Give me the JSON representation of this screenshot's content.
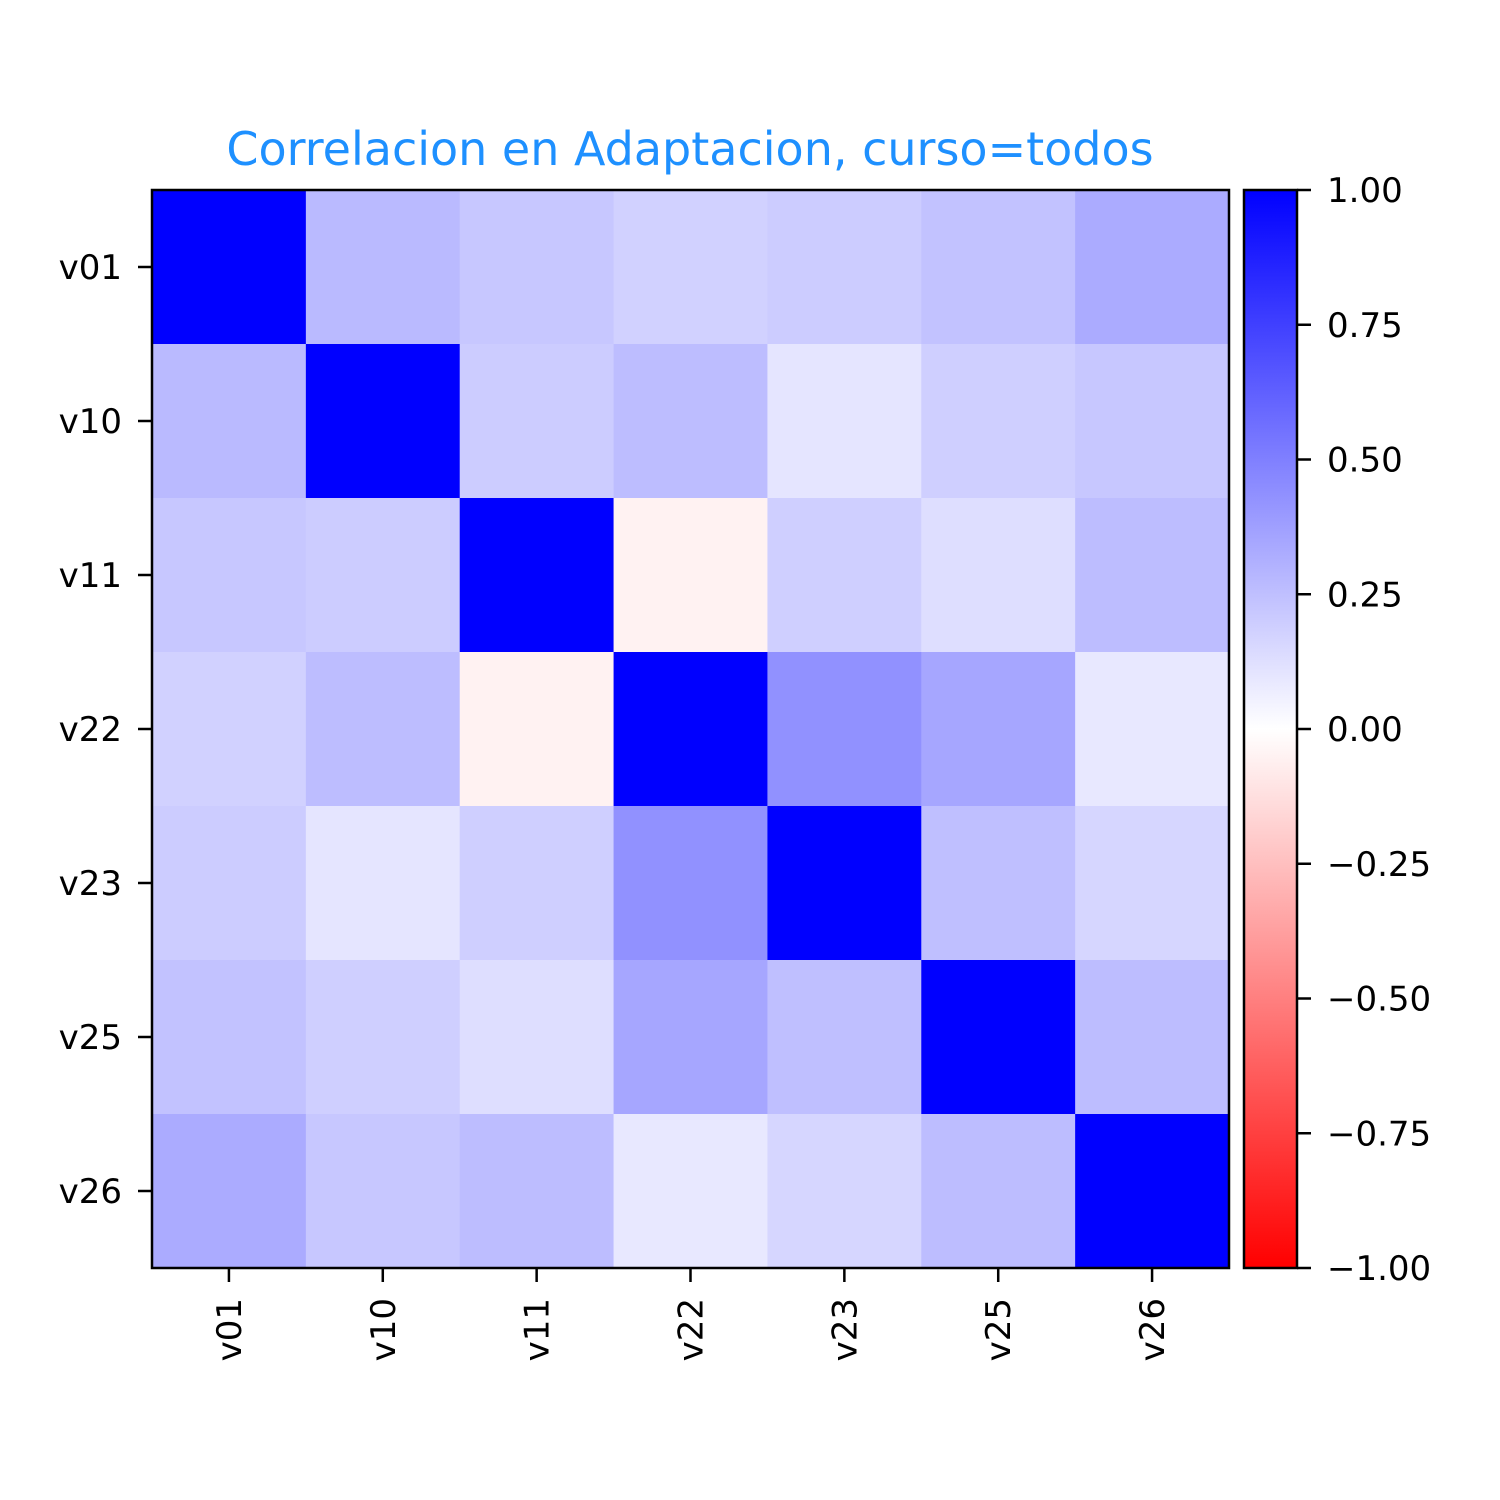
{
  "chart_data": {
    "type": "heatmap",
    "title": "Correlacion en Adaptacion, curso=todos",
    "xlabel": "",
    "ylabel": "",
    "row_labels": [
      "v01",
      "v10",
      "v11",
      "v22",
      "v23",
      "v25",
      "v26"
    ],
    "col_labels": [
      "v01",
      "v10",
      "v11",
      "v22",
      "v23",
      "v25",
      "v26"
    ],
    "matrix": [
      [
        1.0,
        0.27,
        0.22,
        0.18,
        0.2,
        0.24,
        0.33
      ],
      [
        0.27,
        1.0,
        0.2,
        0.26,
        0.1,
        0.19,
        0.22
      ],
      [
        0.22,
        0.2,
        1.0,
        -0.05,
        0.19,
        0.13,
        0.26
      ],
      [
        0.18,
        0.26,
        -0.05,
        1.0,
        0.43,
        0.35,
        0.09
      ],
      [
        0.2,
        0.1,
        0.19,
        0.43,
        1.0,
        0.25,
        0.16
      ],
      [
        0.24,
        0.19,
        0.13,
        0.35,
        0.25,
        1.0,
        0.26
      ],
      [
        0.33,
        0.22,
        0.26,
        0.09,
        0.16,
        0.26,
        1.0
      ]
    ],
    "colorbar": {
      "min": -1.0,
      "max": 1.0,
      "ticks": [
        1.0,
        0.75,
        0.5,
        0.25,
        0.0,
        -0.25,
        -0.5,
        -0.75,
        -1.0
      ],
      "tick_labels": [
        "1.00",
        "0.75",
        "0.50",
        "0.25",
        "0.00",
        "−0.25",
        "−0.50",
        "−0.75",
        "−1.00"
      ]
    },
    "colormap": {
      "negative": "#ff0000",
      "zero": "#ffffff",
      "positive": "#0000ff"
    },
    "xtick_rotation": "vertical",
    "grid": false,
    "legend": "colorbar-right"
  }
}
